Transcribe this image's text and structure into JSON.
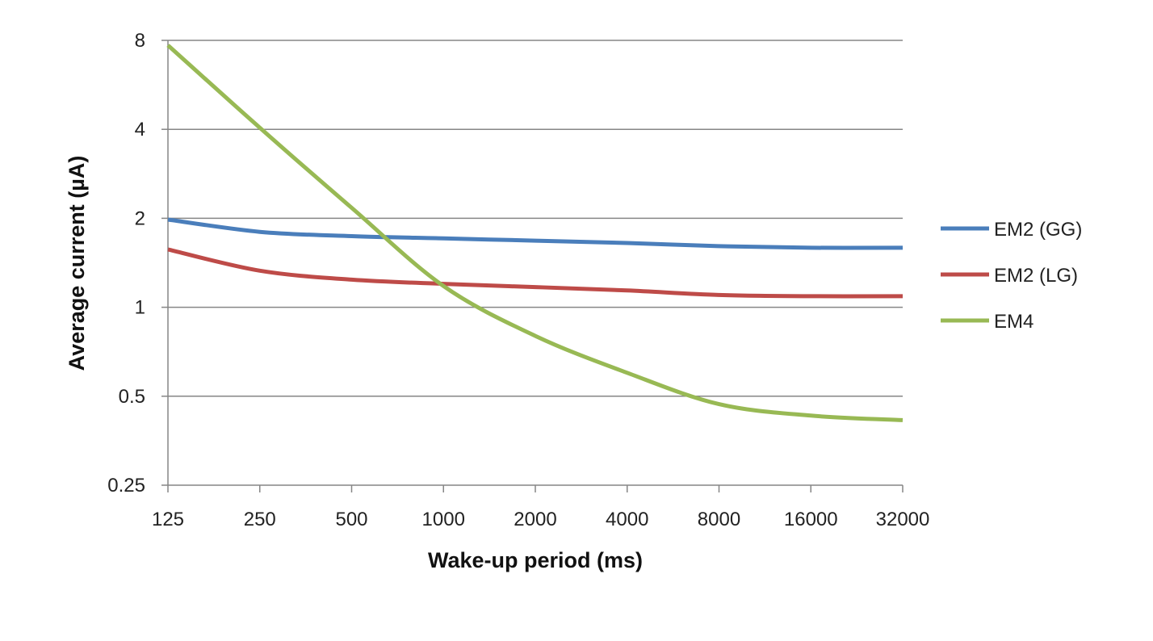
{
  "chart_data": {
    "type": "line",
    "title": "",
    "xlabel": "Wake-up period (ms)",
    "ylabel": "Average current (µA)",
    "x_scale": "log2",
    "y_scale": "log2",
    "x": [
      125,
      250,
      500,
      1000,
      2000,
      4000,
      8000,
      16000,
      32000
    ],
    "x_tick_labels": [
      "125",
      "250",
      "500",
      "1000",
      "2000",
      "4000",
      "8000",
      "16000",
      "32000"
    ],
    "y_ticks": [
      0.25,
      0.5,
      1,
      2,
      4,
      8
    ],
    "y_tick_labels": [
      "0.25",
      "0.5",
      "1",
      "2",
      "4",
      "8"
    ],
    "xlim": [
      125,
      32000
    ],
    "ylim": [
      0.25,
      8
    ],
    "grid": "horizontal",
    "legend_position": "right",
    "series": [
      {
        "name": "EM2 (GG)",
        "color": "#4a7ebb",
        "values": [
          1.98,
          1.8,
          1.74,
          1.71,
          1.68,
          1.65,
          1.61,
          1.59,
          1.59
        ]
      },
      {
        "name": "EM2 (LG)",
        "color": "#be4b48",
        "values": [
          1.57,
          1.33,
          1.24,
          1.2,
          1.17,
          1.14,
          1.1,
          1.09,
          1.09
        ]
      },
      {
        "name": "EM4",
        "color": "#98b954",
        "values": [
          7.7,
          4.05,
          2.17,
          1.18,
          0.8,
          0.6,
          0.47,
          0.43,
          0.415
        ]
      }
    ]
  }
}
